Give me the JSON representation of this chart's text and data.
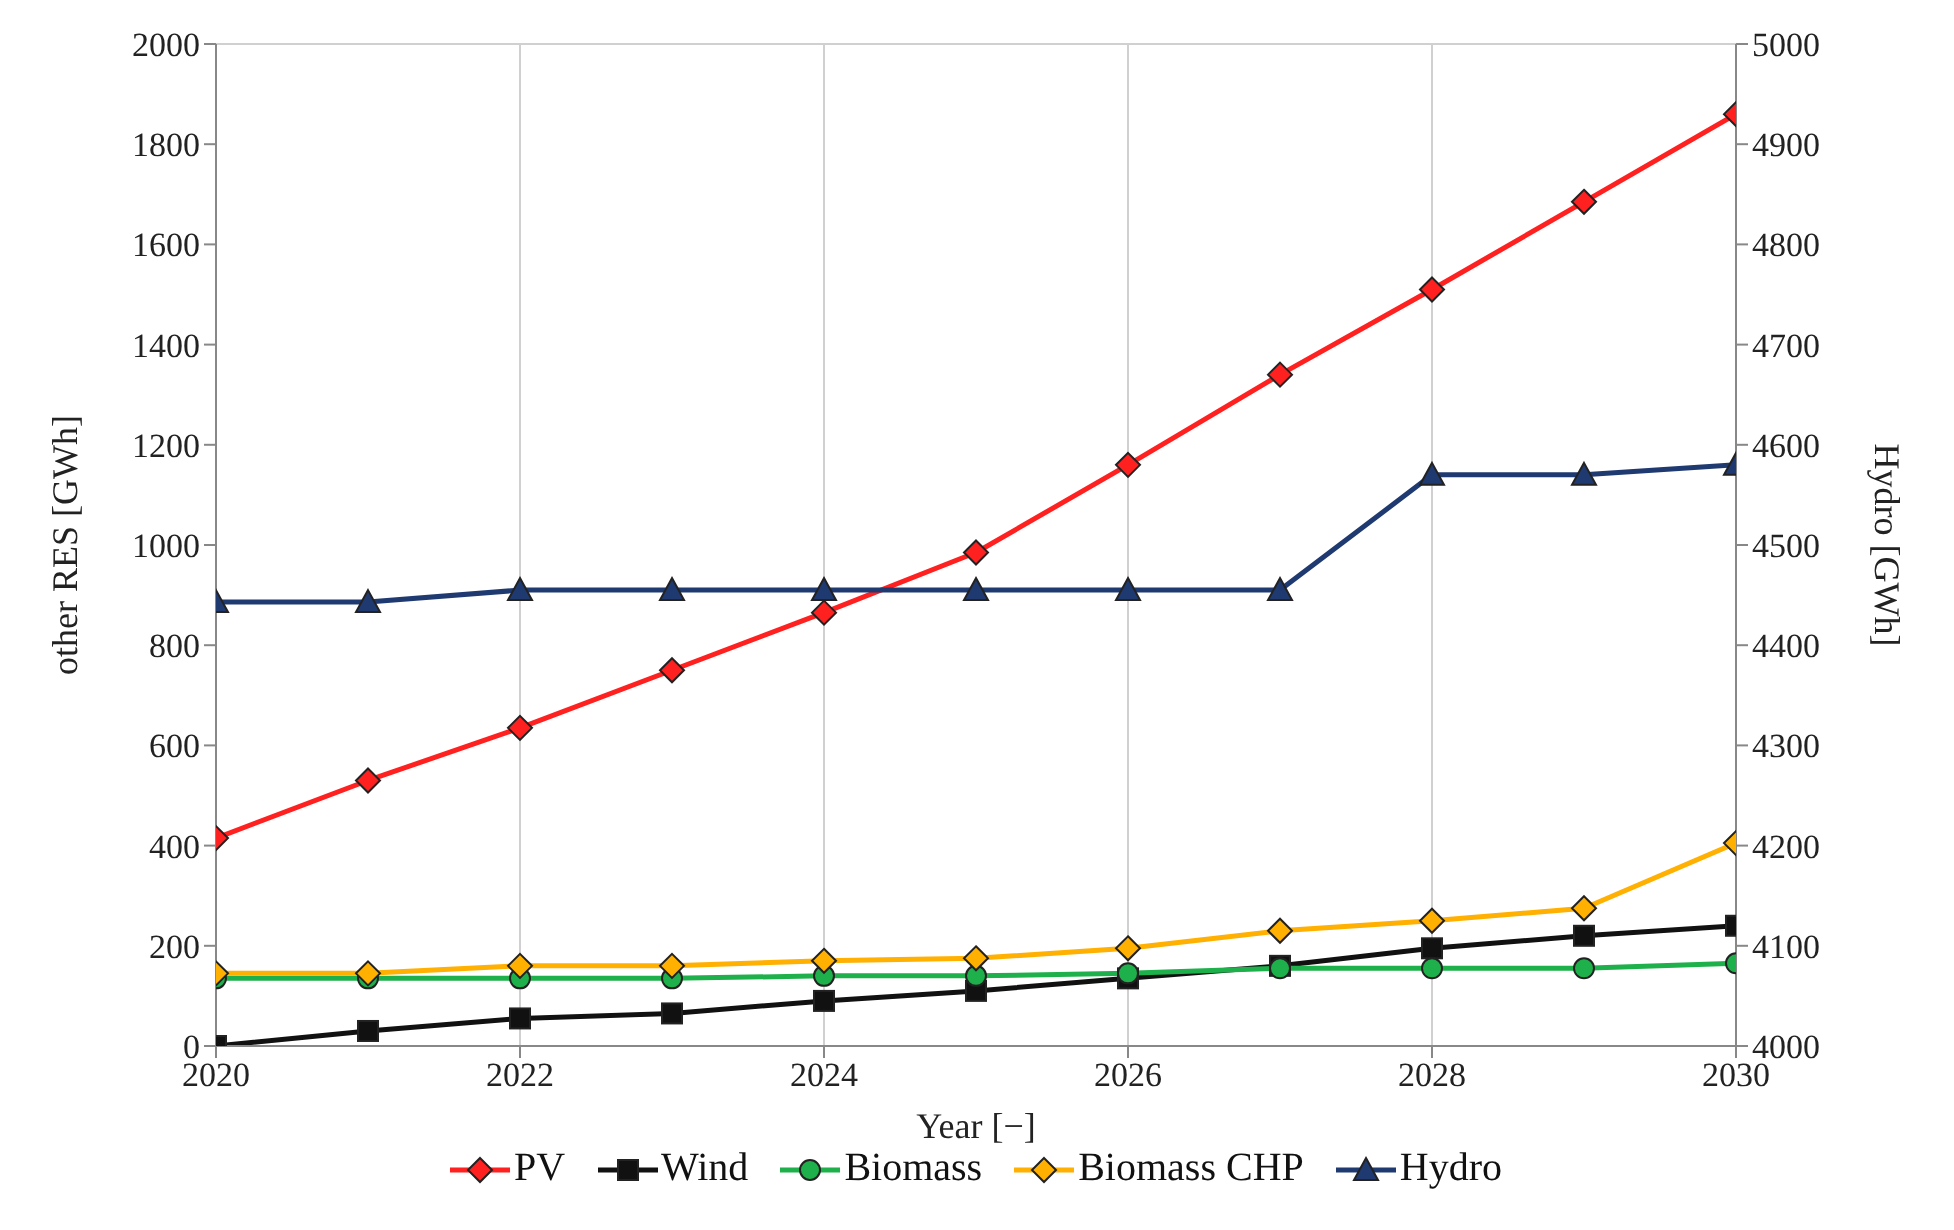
{
  "chart_data": {
    "type": "line",
    "xlabel": "Year [−]",
    "ylabel": "other RES [GWh]",
    "y2label": "Hydro [GWh]",
    "x": [
      2020,
      2021,
      2022,
      2023,
      2024,
      2025,
      2026,
      2027,
      2028,
      2029,
      2030
    ],
    "xlim": [
      2020,
      2030
    ],
    "xticks": [
      2020,
      2022,
      2024,
      2026,
      2028,
      2030
    ],
    "ylim": [
      0,
      2000
    ],
    "yticks": [
      0,
      200,
      400,
      600,
      800,
      1000,
      1200,
      1400,
      1600,
      1800,
      2000
    ],
    "y2lim": [
      4000,
      5000
    ],
    "y2ticks": [
      4000,
      4100,
      4200,
      4300,
      4400,
      4500,
      4600,
      4700,
      4800,
      4900,
      5000
    ],
    "grid": true,
    "legend": "bottom",
    "line_style": "solid",
    "series": [
      {
        "name": "PV",
        "color": "#ff2020",
        "marker": "diamond",
        "values": [
          415,
          530,
          635,
          750,
          865,
          985,
          1160,
          1340,
          1510,
          1685,
          1860
        ]
      },
      {
        "name": "Wind",
        "color": "#111111",
        "marker": "square",
        "values": [
          0,
          30,
          55,
          65,
          90,
          110,
          135,
          160,
          195,
          220,
          240
        ]
      },
      {
        "name": "Biomass",
        "color": "#1eb04a",
        "marker": "circle",
        "values": [
          135,
          135,
          135,
          135,
          140,
          140,
          145,
          155,
          155,
          155,
          165
        ]
      },
      {
        "name": "Biomass CHP",
        "color": "#ffb000",
        "marker": "diamond",
        "values": [
          145,
          145,
          160,
          160,
          170,
          175,
          195,
          230,
          250,
          275,
          405
        ]
      },
      {
        "name": "Hydro",
        "color": "#1f3a70",
        "marker": "triangle",
        "axis": "y2",
        "values": [
          4443,
          4443,
          4455,
          4455,
          4455,
          4455,
          4455,
          4455,
          4570,
          4570,
          4580
        ]
      }
    ]
  }
}
